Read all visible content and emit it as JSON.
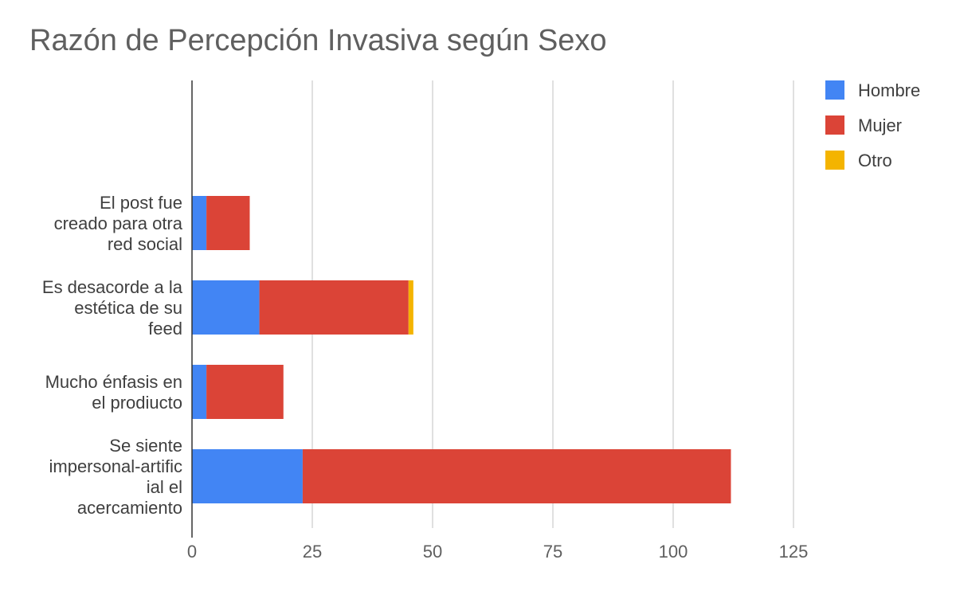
{
  "chart_data": {
    "type": "bar",
    "orientation": "horizontal",
    "stacked": true,
    "title": "Razón de Percepción Invasiva según Sexo",
    "xlabel": "",
    "ylabel": "",
    "categories": [
      [
        "El post fue",
        "creado para otra",
        "red social"
      ],
      [
        "Es desacorde a la",
        "estética de su",
        "feed"
      ],
      [
        "Mucho énfasis en",
        "el prodiucto"
      ],
      [
        "Se siente",
        "impersonal-artific",
        "ial el",
        "acercamiento"
      ]
    ],
    "series": [
      {
        "name": "Hombre",
        "color": "#4285f4",
        "values": [
          3,
          14,
          3,
          23
        ]
      },
      {
        "name": "Mujer",
        "color": "#db4437",
        "values": [
          9,
          31,
          16,
          89
        ]
      },
      {
        "name": "Otro",
        "color": "#f4b400",
        "values": [
          0,
          1,
          0,
          0
        ]
      }
    ],
    "xlim": [
      0,
      125
    ],
    "xticks": [
      0,
      25,
      50,
      75,
      100,
      125
    ],
    "grid": true,
    "legend_position": "top-right"
  }
}
